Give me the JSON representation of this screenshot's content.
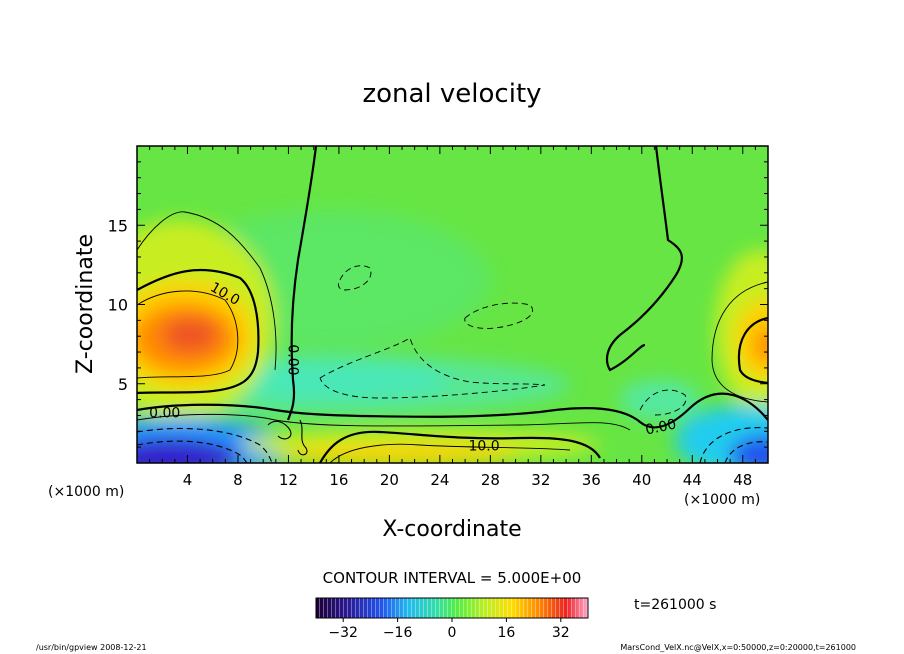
{
  "chart_data": {
    "type": "heatmap",
    "title": "zonal velocity",
    "xlabel": "X-coordinate",
    "ylabel": "Z-coordinate",
    "x_unit": "(×1000 m)",
    "z_unit": "(×1000 m)",
    "xlim": [
      0,
      50
    ],
    "ylim": [
      0,
      20
    ],
    "x_ticks": [
      4,
      8,
      12,
      16,
      20,
      24,
      28,
      32,
      36,
      40,
      44,
      48
    ],
    "y_ticks": [
      5,
      10,
      15
    ],
    "contour_labels": [
      {
        "text": "10.0",
        "x": 7.0,
        "z": 10.7,
        "angle": 30
      },
      {
        "text": "0.00",
        "x": 12.4,
        "z": 6.5,
        "angle": 90
      },
      {
        "text": "0.00",
        "x": 2.2,
        "z": 3.2,
        "angle": 0
      },
      {
        "text": "10.0",
        "x": 27.5,
        "z": 1.1,
        "angle": 0
      },
      {
        "text": "0.00",
        "x": 41.5,
        "z": 2.3,
        "angle": -12
      }
    ],
    "colorbar": {
      "range": [
        -40,
        40
      ],
      "tick_values": [
        -32,
        -16,
        0,
        16,
        32
      ],
      "tick_labels": [
        "−32",
        "−16",
        "0",
        "16",
        "32"
      ]
    },
    "contour_interval_label": "CONTOUR INTERVAL = 5.000E+00",
    "time_label": "t=261000 s"
  },
  "footer": {
    "left": "/usr/bin/gpview   2008-12-21",
    "right": "MarsCond_VelX.nc@VelX,x=0:50000,z=0:20000,t=261000"
  }
}
